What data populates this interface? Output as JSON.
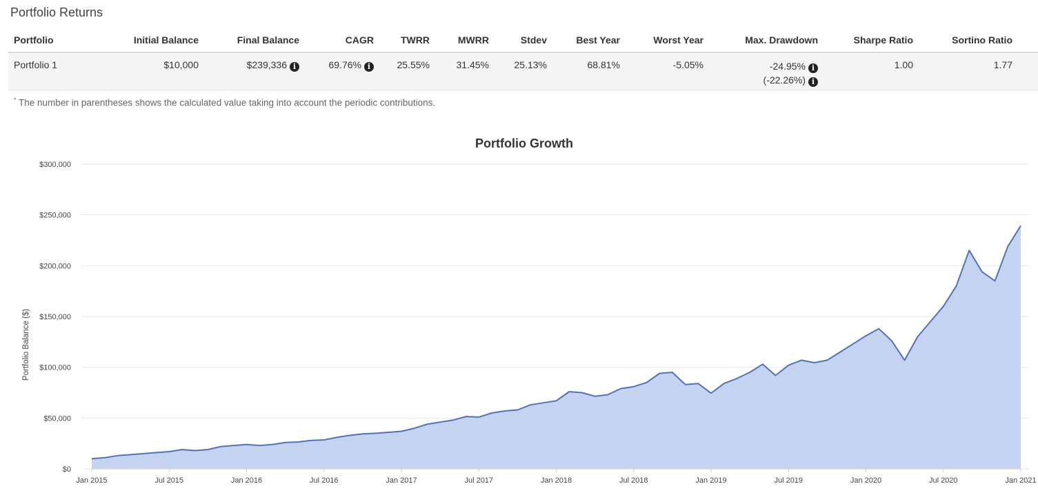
{
  "section_title": "Portfolio Returns",
  "table": {
    "headers": [
      "Portfolio",
      "Initial Balance",
      "Final Balance",
      "CAGR",
      "TWRR",
      "MWRR",
      "Stdev",
      "Best Year",
      "Worst Year",
      "Max. Drawdown",
      "Sharpe Ratio",
      "Sortino Ratio"
    ],
    "row": {
      "portfolio": "Portfolio 1",
      "initial_balance": "$10,000",
      "final_balance": "$239,336",
      "cagr": "69.76%",
      "twrr": "25.55%",
      "mwrr": "31.45%",
      "stdev": "25.13%",
      "best_year": "68.81%",
      "worst_year": "-5.05%",
      "max_drawdown": "-24.95%",
      "max_drawdown_contrib": "(-22.26%)",
      "sharpe_ratio": "1.00",
      "sortino_ratio": "1.77"
    },
    "info_icon_glyph": "i"
  },
  "footnote_marker": "*",
  "footnote": "The number in parentheses shows the calculated value taking into account the periodic contributions.",
  "chart_data": {
    "type": "area",
    "title": "Portfolio Growth",
    "ylabel": "Portfolio Balance ($)",
    "xlabel": "",
    "ylim": [
      0,
      300000
    ],
    "yticks": [
      0,
      50000,
      100000,
      150000,
      200000,
      250000,
      300000
    ],
    "ytick_labels": [
      "$0",
      "$50,000",
      "$100,000",
      "$150,000",
      "$200,000",
      "$250,000",
      "$300,000"
    ],
    "xtick_labels": [
      "Jan 2015",
      "Jul 2015",
      "Jan 2016",
      "Jul 2016",
      "Jan 2017",
      "Jul 2017",
      "Jan 2018",
      "Jul 2018",
      "Jan 2019",
      "Jul 2019",
      "Jan 2020",
      "Jul 2020",
      "Jan 2021"
    ],
    "x": [
      "2015-01",
      "2015-02",
      "2015-03",
      "2015-04",
      "2015-05",
      "2015-06",
      "2015-07",
      "2015-08",
      "2015-09",
      "2015-10",
      "2015-11",
      "2015-12",
      "2016-01",
      "2016-02",
      "2016-03",
      "2016-04",
      "2016-05",
      "2016-06",
      "2016-07",
      "2016-08",
      "2016-09",
      "2016-10",
      "2016-11",
      "2016-12",
      "2017-01",
      "2017-02",
      "2017-03",
      "2017-04",
      "2017-05",
      "2017-06",
      "2017-07",
      "2017-08",
      "2017-09",
      "2017-10",
      "2017-11",
      "2017-12",
      "2018-01",
      "2018-02",
      "2018-03",
      "2018-04",
      "2018-05",
      "2018-06",
      "2018-07",
      "2018-08",
      "2018-09",
      "2018-10",
      "2018-11",
      "2018-12",
      "2019-01",
      "2019-02",
      "2019-03",
      "2019-04",
      "2019-05",
      "2019-06",
      "2019-07",
      "2019-08",
      "2019-09",
      "2019-10",
      "2019-11",
      "2019-12",
      "2020-01",
      "2020-02",
      "2020-03",
      "2020-04",
      "2020-05",
      "2020-06",
      "2020-07",
      "2020-08",
      "2020-09",
      "2020-10",
      "2020-11",
      "2020-12",
      "2021-01"
    ],
    "series": [
      {
        "name": "Portfolio 1",
        "values": [
          10000,
          11000,
          13000,
          14000,
          15000,
          16000,
          17000,
          19000,
          18000,
          19000,
          22000,
          23000,
          24000,
          23000,
          24000,
          26000,
          26500,
          28000,
          28500,
          31000,
          33000,
          34500,
          35000,
          36000,
          37000,
          40000,
          44000,
          46000,
          48000,
          51500,
          51000,
          55000,
          57000,
          58000,
          63000,
          65000,
          67000,
          76000,
          75000,
          71500,
          73000,
          79000,
          81000,
          85000,
          94000,
          95000,
          83000,
          84000,
          74500,
          84000,
          89000,
          95000,
          103000,
          92000,
          102000,
          107000,
          104500,
          107000,
          115000,
          123000,
          131000,
          138000,
          126000,
          107000,
          130000,
          145000,
          160000,
          180000,
          215000,
          194000,
          185000,
          219000,
          239336
        ]
      }
    ],
    "line_color": "#4f72b8",
    "fill_color": "#c3d3f0",
    "grid": true,
    "legend": "none"
  }
}
